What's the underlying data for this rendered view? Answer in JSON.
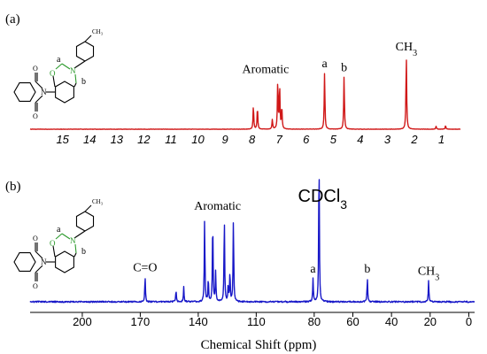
{
  "chart_data": [
    {
      "panel": "(a)",
      "type": "line",
      "series_color": "#d01818",
      "x_direction": "decreasing",
      "xlim": [
        16.2,
        0.3
      ],
      "ticks": [
        15,
        14,
        13,
        12,
        11,
        10,
        9,
        8,
        7,
        6,
        5,
        4,
        3,
        2,
        1
      ],
      "tick_labels": [
        "15",
        "14",
        "13",
        "12",
        "11",
        "10",
        "9",
        "8",
        "7",
        "6",
        "5",
        "4",
        "3",
        "2",
        "1"
      ],
      "peaks": [
        {
          "x": 7.95,
          "h": 0.32
        },
        {
          "x": 7.8,
          "h": 0.3
        },
        {
          "x": 7.25,
          "h": 0.13
        },
        {
          "x": 7.05,
          "h": 0.66
        },
        {
          "x": 6.98,
          "h": 0.58
        },
        {
          "x": 6.9,
          "h": 0.3
        },
        {
          "x": 5.32,
          "h": 0.76
        },
        {
          "x": 4.6,
          "h": 0.71
        },
        {
          "x": 2.3,
          "h": 1.0
        },
        {
          "x": 1.2,
          "h": 0.04
        },
        {
          "x": 0.85,
          "h": 0.05
        }
      ],
      "annotations": [
        {
          "text": "Aromatic",
          "x": 7.5
        },
        {
          "text": "a",
          "x": 5.32
        },
        {
          "text": "b",
          "x": 4.6
        },
        {
          "text": "CH",
          "sub": "3",
          "x": 2.3
        }
      ],
      "structure_labels": {
        "a": "a",
        "b": "b",
        "N": "N",
        "O": "O"
      }
    },
    {
      "panel": "(b)",
      "type": "line",
      "series_color": "#1818c8",
      "x_direction": "decreasing",
      "xlabel": "Chemical Shift (ppm)",
      "xlim": [
        227,
        -3
      ],
      "ticks": [
        200,
        170,
        140,
        110,
        80,
        60,
        40,
        20,
        0
      ],
      "tick_labels": [
        "200",
        "170",
        "140",
        "110",
        "80",
        "60",
        "40",
        "20",
        "0"
      ],
      "peaks": [
        {
          "x": 167.5,
          "h": 0.17
        },
        {
          "x": 151.5,
          "h": 0.08
        },
        {
          "x": 147.5,
          "h": 0.1
        },
        {
          "x": 136.7,
          "h": 0.56
        },
        {
          "x": 134.8,
          "h": 0.16
        },
        {
          "x": 132.5,
          "h": 0.57
        },
        {
          "x": 131.0,
          "h": 0.2
        },
        {
          "x": 126.5,
          "h": 0.57
        },
        {
          "x": 124.5,
          "h": 0.11
        },
        {
          "x": 123.6,
          "h": 0.2
        },
        {
          "x": 121.8,
          "h": 0.56
        },
        {
          "x": 80.6,
          "h": 0.16
        },
        {
          "x": 77.5,
          "h": 1.0
        },
        {
          "x": 52.5,
          "h": 0.16
        },
        {
          "x": 20.8,
          "h": 0.14
        }
      ],
      "annotations": [
        {
          "text": "C=O",
          "x": 167.5
        },
        {
          "text": "Aromatic",
          "x": 130
        },
        {
          "text": "a",
          "x": 80.6
        },
        {
          "text": "b",
          "x": 52.5
        },
        {
          "text": "CH",
          "sub": "3",
          "x": 20.8
        }
      ],
      "solvent_label": {
        "text": "CDCl",
        "sub": "3",
        "x": 77.5
      },
      "structure_labels": {
        "a": "a",
        "b": "b",
        "N": "N",
        "O": "O"
      }
    }
  ],
  "structure_methyl": "CH₃"
}
